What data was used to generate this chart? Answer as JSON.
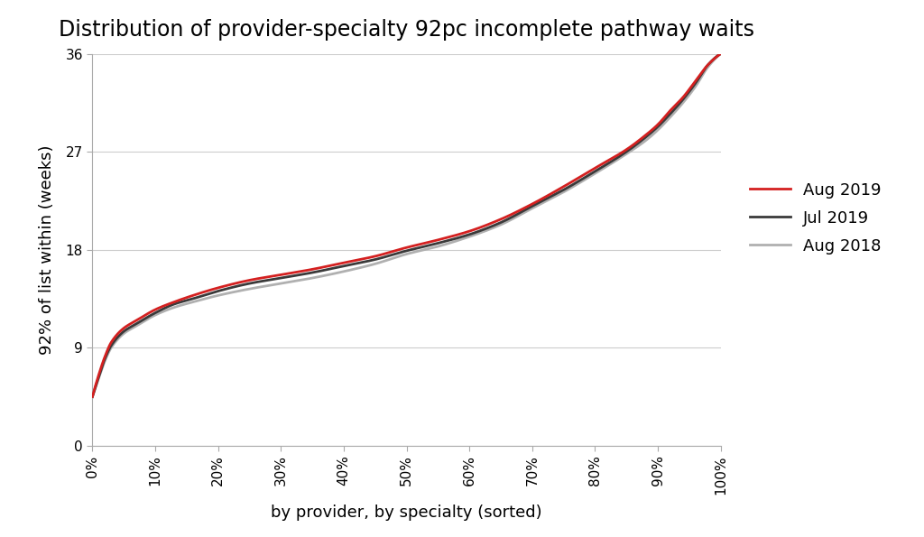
{
  "title": "Distribution of provider-specialty 92pc incomplete pathway waits",
  "xlabel": "by provider, by specialty (sorted)",
  "ylabel": "92% of list within (weeks)",
  "ylim": [
    0,
    36
  ],
  "xlim": [
    0,
    1
  ],
  "yticks": [
    0,
    9,
    18,
    27,
    36
  ],
  "xticks": [
    0.0,
    0.1,
    0.2,
    0.3,
    0.4,
    0.5,
    0.6,
    0.7,
    0.8,
    0.9,
    1.0
  ],
  "xtick_labels": [
    "0%",
    "10%",
    "20%",
    "30%",
    "40%",
    "50%",
    "60%",
    "70%",
    "80%",
    "90%",
    "100%"
  ],
  "series": [
    {
      "label": "Aug 2019",
      "color": "#d42020",
      "linewidth": 2.0,
      "zorder": 3
    },
    {
      "label": "Jul 2019",
      "color": "#3a3a3a",
      "linewidth": 2.0,
      "zorder": 2
    },
    {
      "label": "Aug 2018",
      "color": "#b0b0b0",
      "linewidth": 2.0,
      "zorder": 1
    }
  ],
  "background_color": "#ffffff",
  "grid_color": "#cccccc",
  "title_fontsize": 17,
  "axis_label_fontsize": 13,
  "tick_fontsize": 11,
  "legend_fontsize": 13,
  "aug2019_x": [
    0.0,
    0.01,
    0.02,
    0.03,
    0.05,
    0.07,
    0.1,
    0.13,
    0.16,
    0.2,
    0.25,
    0.3,
    0.35,
    0.4,
    0.45,
    0.5,
    0.55,
    0.6,
    0.65,
    0.7,
    0.75,
    0.8,
    0.85,
    0.88,
    0.9,
    0.92,
    0.94,
    0.96,
    0.98,
    1.0
  ],
  "aug2019_y": [
    4.5,
    6.5,
    8.2,
    9.5,
    10.8,
    11.5,
    12.5,
    13.2,
    13.8,
    14.5,
    15.2,
    15.7,
    16.2,
    16.8,
    17.4,
    18.2,
    18.9,
    19.7,
    20.8,
    22.2,
    23.8,
    25.5,
    27.2,
    28.5,
    29.5,
    30.8,
    32.0,
    33.5,
    35.0,
    36.0
  ],
  "jul2019_x": [
    0.0,
    0.01,
    0.02,
    0.03,
    0.05,
    0.07,
    0.1,
    0.13,
    0.16,
    0.2,
    0.25,
    0.3,
    0.35,
    0.4,
    0.45,
    0.5,
    0.55,
    0.6,
    0.65,
    0.7,
    0.75,
    0.8,
    0.85,
    0.88,
    0.9,
    0.92,
    0.94,
    0.96,
    0.98,
    1.0
  ],
  "jul2019_y": [
    4.5,
    6.3,
    8.0,
    9.2,
    10.5,
    11.2,
    12.2,
    13.0,
    13.5,
    14.2,
    14.9,
    15.4,
    15.9,
    16.5,
    17.1,
    17.9,
    18.6,
    19.4,
    20.5,
    22.0,
    23.5,
    25.2,
    27.0,
    28.3,
    29.3,
    30.5,
    31.8,
    33.3,
    35.0,
    36.0
  ],
  "aug2018_x": [
    0.0,
    0.01,
    0.02,
    0.03,
    0.05,
    0.07,
    0.1,
    0.13,
    0.16,
    0.2,
    0.25,
    0.3,
    0.35,
    0.4,
    0.45,
    0.5,
    0.55,
    0.6,
    0.65,
    0.7,
    0.75,
    0.8,
    0.85,
    0.88,
    0.9,
    0.92,
    0.94,
    0.96,
    0.98,
    1.0
  ],
  "aug2018_y": [
    4.5,
    6.2,
    7.8,
    9.0,
    10.3,
    11.0,
    12.0,
    12.7,
    13.2,
    13.8,
    14.4,
    14.9,
    15.4,
    16.0,
    16.7,
    17.6,
    18.3,
    19.2,
    20.3,
    21.8,
    23.3,
    25.0,
    26.8,
    28.0,
    29.0,
    30.2,
    31.5,
    33.0,
    34.8,
    36.0
  ]
}
